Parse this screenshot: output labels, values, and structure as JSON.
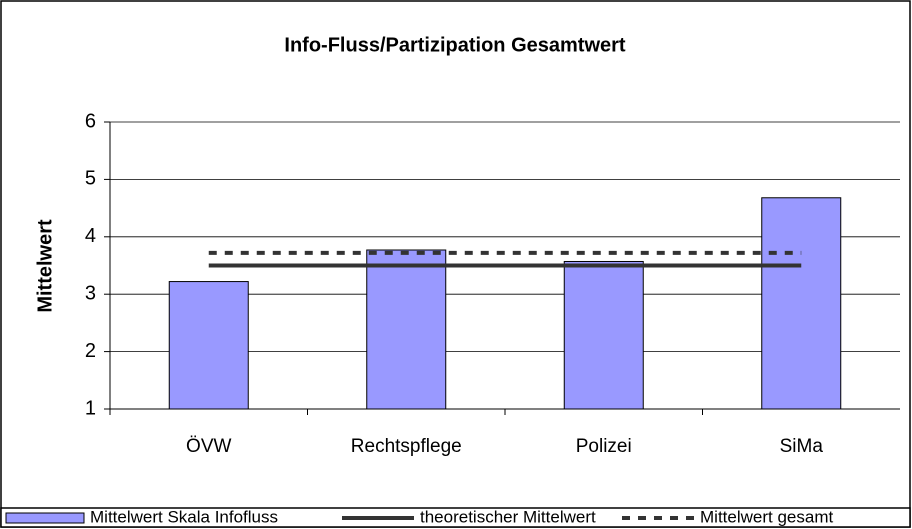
{
  "chart_data": {
    "type": "bar",
    "title": "Info-Fluss/Partizipation Gesamtwert",
    "y_label": "Mittelwert",
    "categories": [
      "ÖVW",
      "Rechtspflege",
      "Polizei",
      "SiMa"
    ],
    "series": [
      {
        "name": "Mittelwert Skala Infofluss",
        "kind": "bar",
        "color": "#9999ff",
        "values": [
          3.22,
          3.77,
          3.57,
          4.68
        ]
      },
      {
        "name": "theoretischer Mittelwert",
        "kind": "line",
        "color": "#333333",
        "dashed": false,
        "values": [
          3.5,
          3.5,
          3.5,
          3.5
        ]
      },
      {
        "name": "Mittelwert gesamt",
        "kind": "line",
        "color": "#333333",
        "dashed": true,
        "values": [
          3.72,
          3.72,
          3.72,
          3.72
        ]
      }
    ],
    "ylim": [
      1,
      6
    ],
    "yticks": [
      1,
      2,
      3,
      4,
      5,
      6
    ],
    "grid": true,
    "legend": "bottom"
  }
}
